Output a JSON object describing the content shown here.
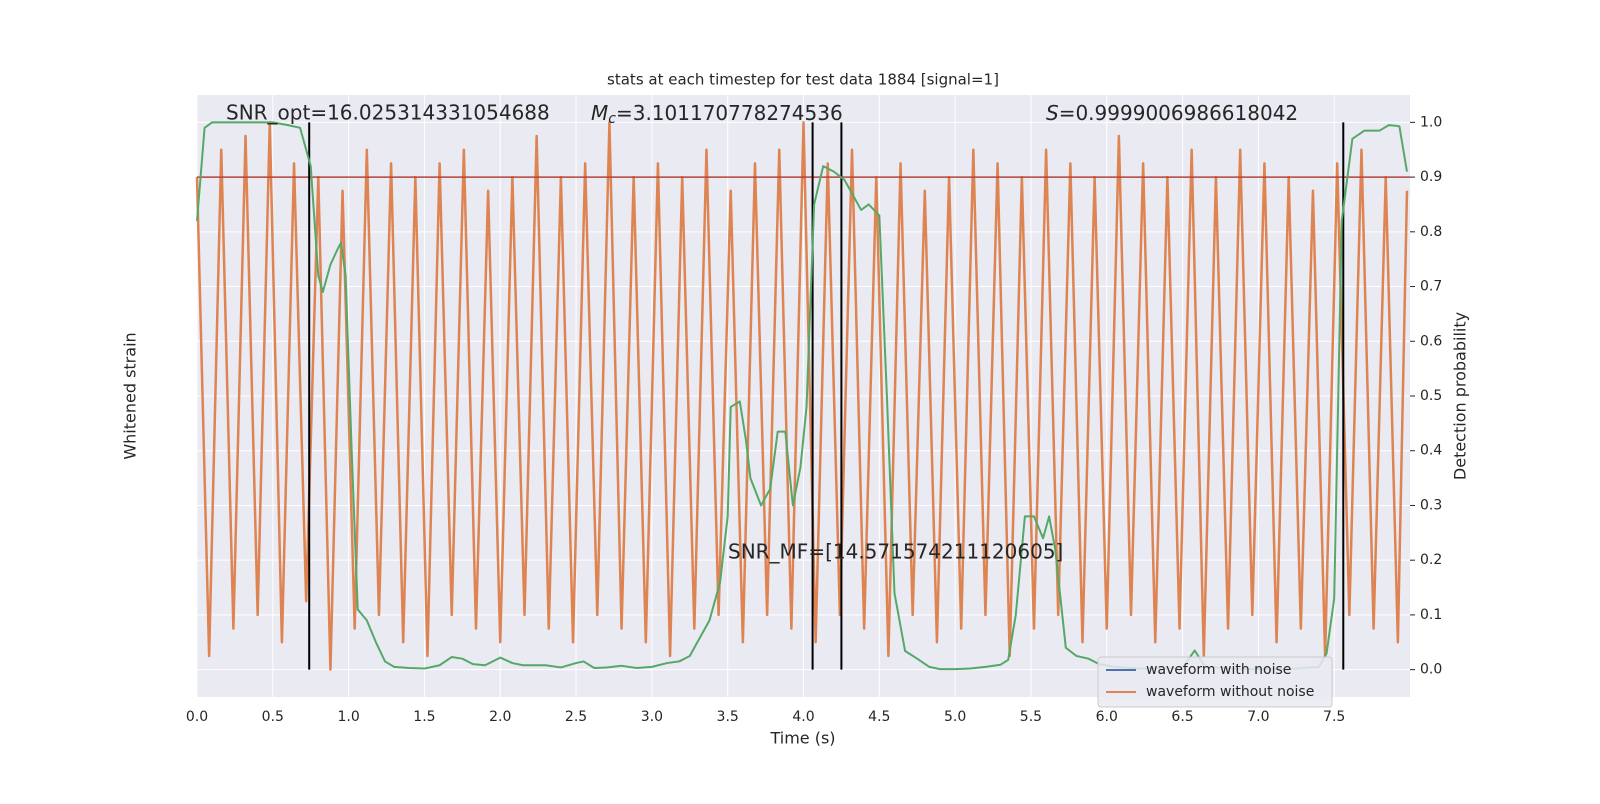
{
  "chart_data": {
    "type": "line",
    "title": "stats at each timestep for test data 1884 [signal=1]",
    "xlabel": "Time (s)",
    "ylabel": "Whitened strain",
    "y2label": "Detection probability",
    "xlim": [
      0,
      8
    ],
    "ylim": [
      -1.1,
      1.1
    ],
    "y2lim": [
      -0.05,
      1.05
    ],
    "xticks": [
      {
        "value": 0,
        "label": "0.0"
      },
      0.5,
      {
        "value": 1,
        "label": "1.0"
      },
      1.5,
      {
        "value": 2,
        "label": "2.0"
      },
      2.5,
      {
        "value": 3,
        "label": "3.0"
      },
      3.5,
      {
        "value": 4,
        "label": "4.0"
      },
      4.5,
      {
        "value": 5,
        "label": "5.0"
      },
      5.5,
      {
        "value": 6,
        "label": "6.0"
      },
      6.5,
      {
        "value": 7,
        "label": "7.0"
      },
      7.5
    ],
    "y2ticks": [
      {
        "value": 0,
        "label": "0.0"
      },
      0.1,
      0.2,
      0.3,
      0.4,
      0.5,
      0.6,
      0.7,
      0.8,
      0.9,
      {
        "value": 1,
        "label": "1.0"
      }
    ],
    "grid": true,
    "legend": "lower right",
    "series": [
      {
        "name": "waveform with noise",
        "color": "#4c72b0",
        "x": [],
        "values": []
      },
      {
        "name": "waveform without noise",
        "color": "#dd8452",
        "x": [
          0,
          0.08,
          0.16,
          0.24,
          0.32,
          0.4,
          0.48,
          0.56,
          0.64,
          0.72,
          0.8,
          0.88,
          0.96,
          1.04,
          1.12,
          1.2,
          1.28,
          1.36,
          1.44,
          1.52,
          1.6,
          1.68,
          1.76,
          1.84,
          1.92,
          2,
          2.08,
          2.16,
          2.24,
          2.32,
          2.4,
          2.48,
          2.56,
          2.64,
          2.72,
          2.8,
          2.88,
          2.96,
          3.04,
          3.12,
          3.2,
          3.28,
          3.36,
          3.44,
          3.52,
          3.6,
          3.68,
          3.76,
          3.84,
          3.92,
          4,
          4.08,
          4.16,
          4.24,
          4.32,
          4.4,
          4.48,
          4.56,
          4.64,
          4.72,
          4.8,
          4.88,
          4.96,
          5.04,
          5.12,
          5.2,
          5.28,
          5.36,
          5.44,
          5.52,
          5.6,
          5.68,
          5.76,
          5.84,
          5.92,
          6,
          6.08,
          6.16,
          6.24,
          6.32,
          6.4,
          6.48,
          6.56,
          6.64,
          6.72,
          6.8,
          6.88,
          6.96,
          7.04,
          7.12,
          7.2,
          7.28,
          7.36,
          7.44,
          7.52,
          7.6,
          7.68,
          7.76,
          7.84,
          7.92,
          7.98
        ],
        "values": [
          0.8,
          -0.95,
          0.9,
          -0.85,
          0.95,
          -0.8,
          1.0,
          -0.9,
          0.85,
          -0.75,
          0.8,
          -1.0,
          0.75,
          -0.85,
          0.9,
          -0.8,
          0.85,
          -0.9,
          0.8,
          -0.95,
          0.85,
          -0.8,
          0.9,
          -0.85,
          0.75,
          -0.9,
          0.8,
          -0.8,
          0.95,
          -0.85,
          0.8,
          -0.9,
          0.85,
          -0.8,
          1.0,
          -0.85,
          0.8,
          -0.9,
          0.85,
          -0.95,
          0.8,
          -0.85,
          0.9,
          -0.8,
          0.75,
          -0.9,
          0.85,
          -0.8,
          0.9,
          -0.85,
          1.0,
          -0.9,
          0.85,
          -0.8,
          0.9,
          -0.85,
          0.8,
          -0.95,
          0.85,
          -0.8,
          0.75,
          -0.9,
          0.8,
          -0.85,
          0.9,
          -0.8,
          0.85,
          -0.95,
          0.8,
          -0.85,
          0.9,
          -0.8,
          0.85,
          -0.9,
          0.8,
          -0.85,
          0.95,
          -0.8,
          0.85,
          -0.9,
          0.8,
          -0.85,
          0.9,
          -0.95,
          0.8,
          -0.85,
          0.9,
          -0.8,
          0.85,
          -0.9,
          0.8,
          -0.85,
          0.75,
          -0.95,
          0.85,
          -0.8,
          0.9,
          -0.85,
          0.8,
          -0.9,
          0.75
        ]
      },
      {
        "name": "Detection probability",
        "color": "#55a868",
        "axis": "y2",
        "x": [
          0,
          0.05,
          0.1,
          0.2,
          0.3,
          0.4,
          0.5,
          0.6,
          0.68,
          0.75,
          0.8,
          0.83,
          0.88,
          0.93,
          0.95,
          0.98,
          1.02,
          1.06,
          1.12,
          1.18,
          1.24,
          1.3,
          1.4,
          1.5,
          1.6,
          1.68,
          1.75,
          1.82,
          1.9,
          2,
          2.08,
          2.15,
          2.3,
          2.4,
          2.5,
          2.55,
          2.62,
          2.7,
          2.8,
          2.9,
          3,
          3.1,
          3.18,
          3.25,
          3.3,
          3.38,
          3.45,
          3.5,
          3.52,
          3.58,
          3.62,
          3.65,
          3.72,
          3.78,
          3.83,
          3.88,
          3.93,
          3.98,
          4.02,
          4.07,
          4.13,
          4.2,
          4.27,
          4.32,
          4.38,
          4.43,
          4.5,
          4.55,
          4.6,
          4.67,
          4.75,
          4.83,
          4.9,
          5,
          5.1,
          5.2,
          5.3,
          5.35,
          5.4,
          5.46,
          5.52,
          5.58,
          5.62,
          5.66,
          5.73,
          5.8,
          5.88,
          5.95,
          6.05,
          6.2,
          6.5,
          6.58,
          6.65,
          6.9,
          7.2,
          7.4,
          7.45,
          7.5,
          7.55,
          7.62,
          7.7,
          7.8,
          7.86,
          7.93,
          7.98
        ],
        "values": [
          0.82,
          0.99,
          1.0,
          1.0,
          1.0,
          1.0,
          1.0,
          0.995,
          0.99,
          0.92,
          0.72,
          0.69,
          0.74,
          0.77,
          0.78,
          0.72,
          0.4,
          0.11,
          0.09,
          0.05,
          0.015,
          0.005,
          0.003,
          0.002,
          0.008,
          0.023,
          0.02,
          0.01,
          0.008,
          0.022,
          0.012,
          0.008,
          0.008,
          0.004,
          0.012,
          0.015,
          0.003,
          0.004,
          0.007,
          0.003,
          0.005,
          0.012,
          0.015,
          0.025,
          0.05,
          0.09,
          0.16,
          0.28,
          0.48,
          0.49,
          0.42,
          0.35,
          0.3,
          0.33,
          0.435,
          0.435,
          0.3,
          0.37,
          0.48,
          0.85,
          0.92,
          0.91,
          0.895,
          0.87,
          0.84,
          0.85,
          0.83,
          0.5,
          0.14,
          0.034,
          0.02,
          0.005,
          0.001,
          0.001,
          0.002,
          0.005,
          0.009,
          0.018,
          0.1,
          0.28,
          0.28,
          0.24,
          0.28,
          0.22,
          0.04,
          0.025,
          0.02,
          0.01,
          0.005,
          0.002,
          0.003,
          0.035,
          0.005,
          0.001,
          0.001,
          0.005,
          0.03,
          0.13,
          0.82,
          0.97,
          0.985,
          0.985,
          0.995,
          0.993,
          0.91
        ]
      }
    ],
    "threshold": 0.9,
    "threshold_color": "#b5433a",
    "vlines": [
      0.74,
      4.06,
      4.25,
      7.56
    ],
    "vline_ylim": [
      0,
      1
    ],
    "annotations": {
      "snr_opt": "SNR_opt=16.025314331054688",
      "mc_symbol": "M",
      "mc_sub": "c",
      "mc_value": "=3.101170778274536",
      "s_symbol": "S",
      "s_value": "=0.9999006986618042",
      "snr_mf": "SNR_MF=[14.571574211120605]"
    }
  }
}
